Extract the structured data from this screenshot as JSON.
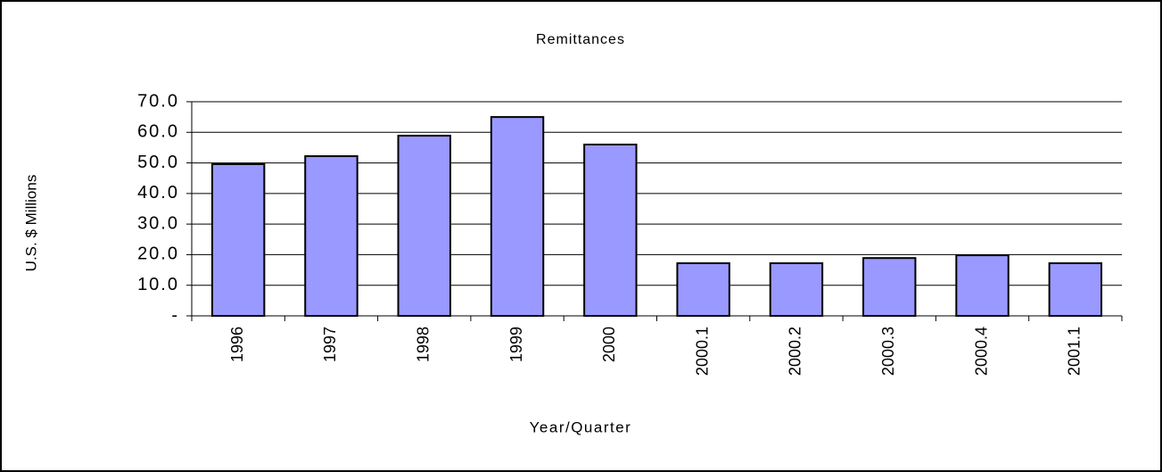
{
  "chart_data": {
    "type": "bar",
    "title": "Remittances",
    "x_label": "Year/Quarter",
    "y_label": "U.S. $ Millions",
    "categories": [
      "1996",
      "1997",
      "1998",
      "1999",
      "2000",
      "2000.1",
      "2000.2",
      "2000.3",
      "2000.4",
      "2001.1"
    ],
    "values": [
      49.6,
      52.2,
      58.9,
      65.0,
      56.0,
      17.2,
      17.2,
      18.9,
      19.8,
      17.2
    ],
    "color": "#9999ff",
    "ylim": [
      0,
      70
    ],
    "yticks": [
      {
        "value": 0,
        "label": "-"
      },
      {
        "value": 10,
        "label": "10.0"
      },
      {
        "value": 20,
        "label": "20.0"
      },
      {
        "value": 30,
        "label": "30.0"
      },
      {
        "value": 40,
        "label": "40.0"
      },
      {
        "value": 50,
        "label": "50.0"
      },
      {
        "value": 60,
        "label": "60.0"
      },
      {
        "value": 70,
        "label": "70.0"
      }
    ],
    "grid": true
  }
}
